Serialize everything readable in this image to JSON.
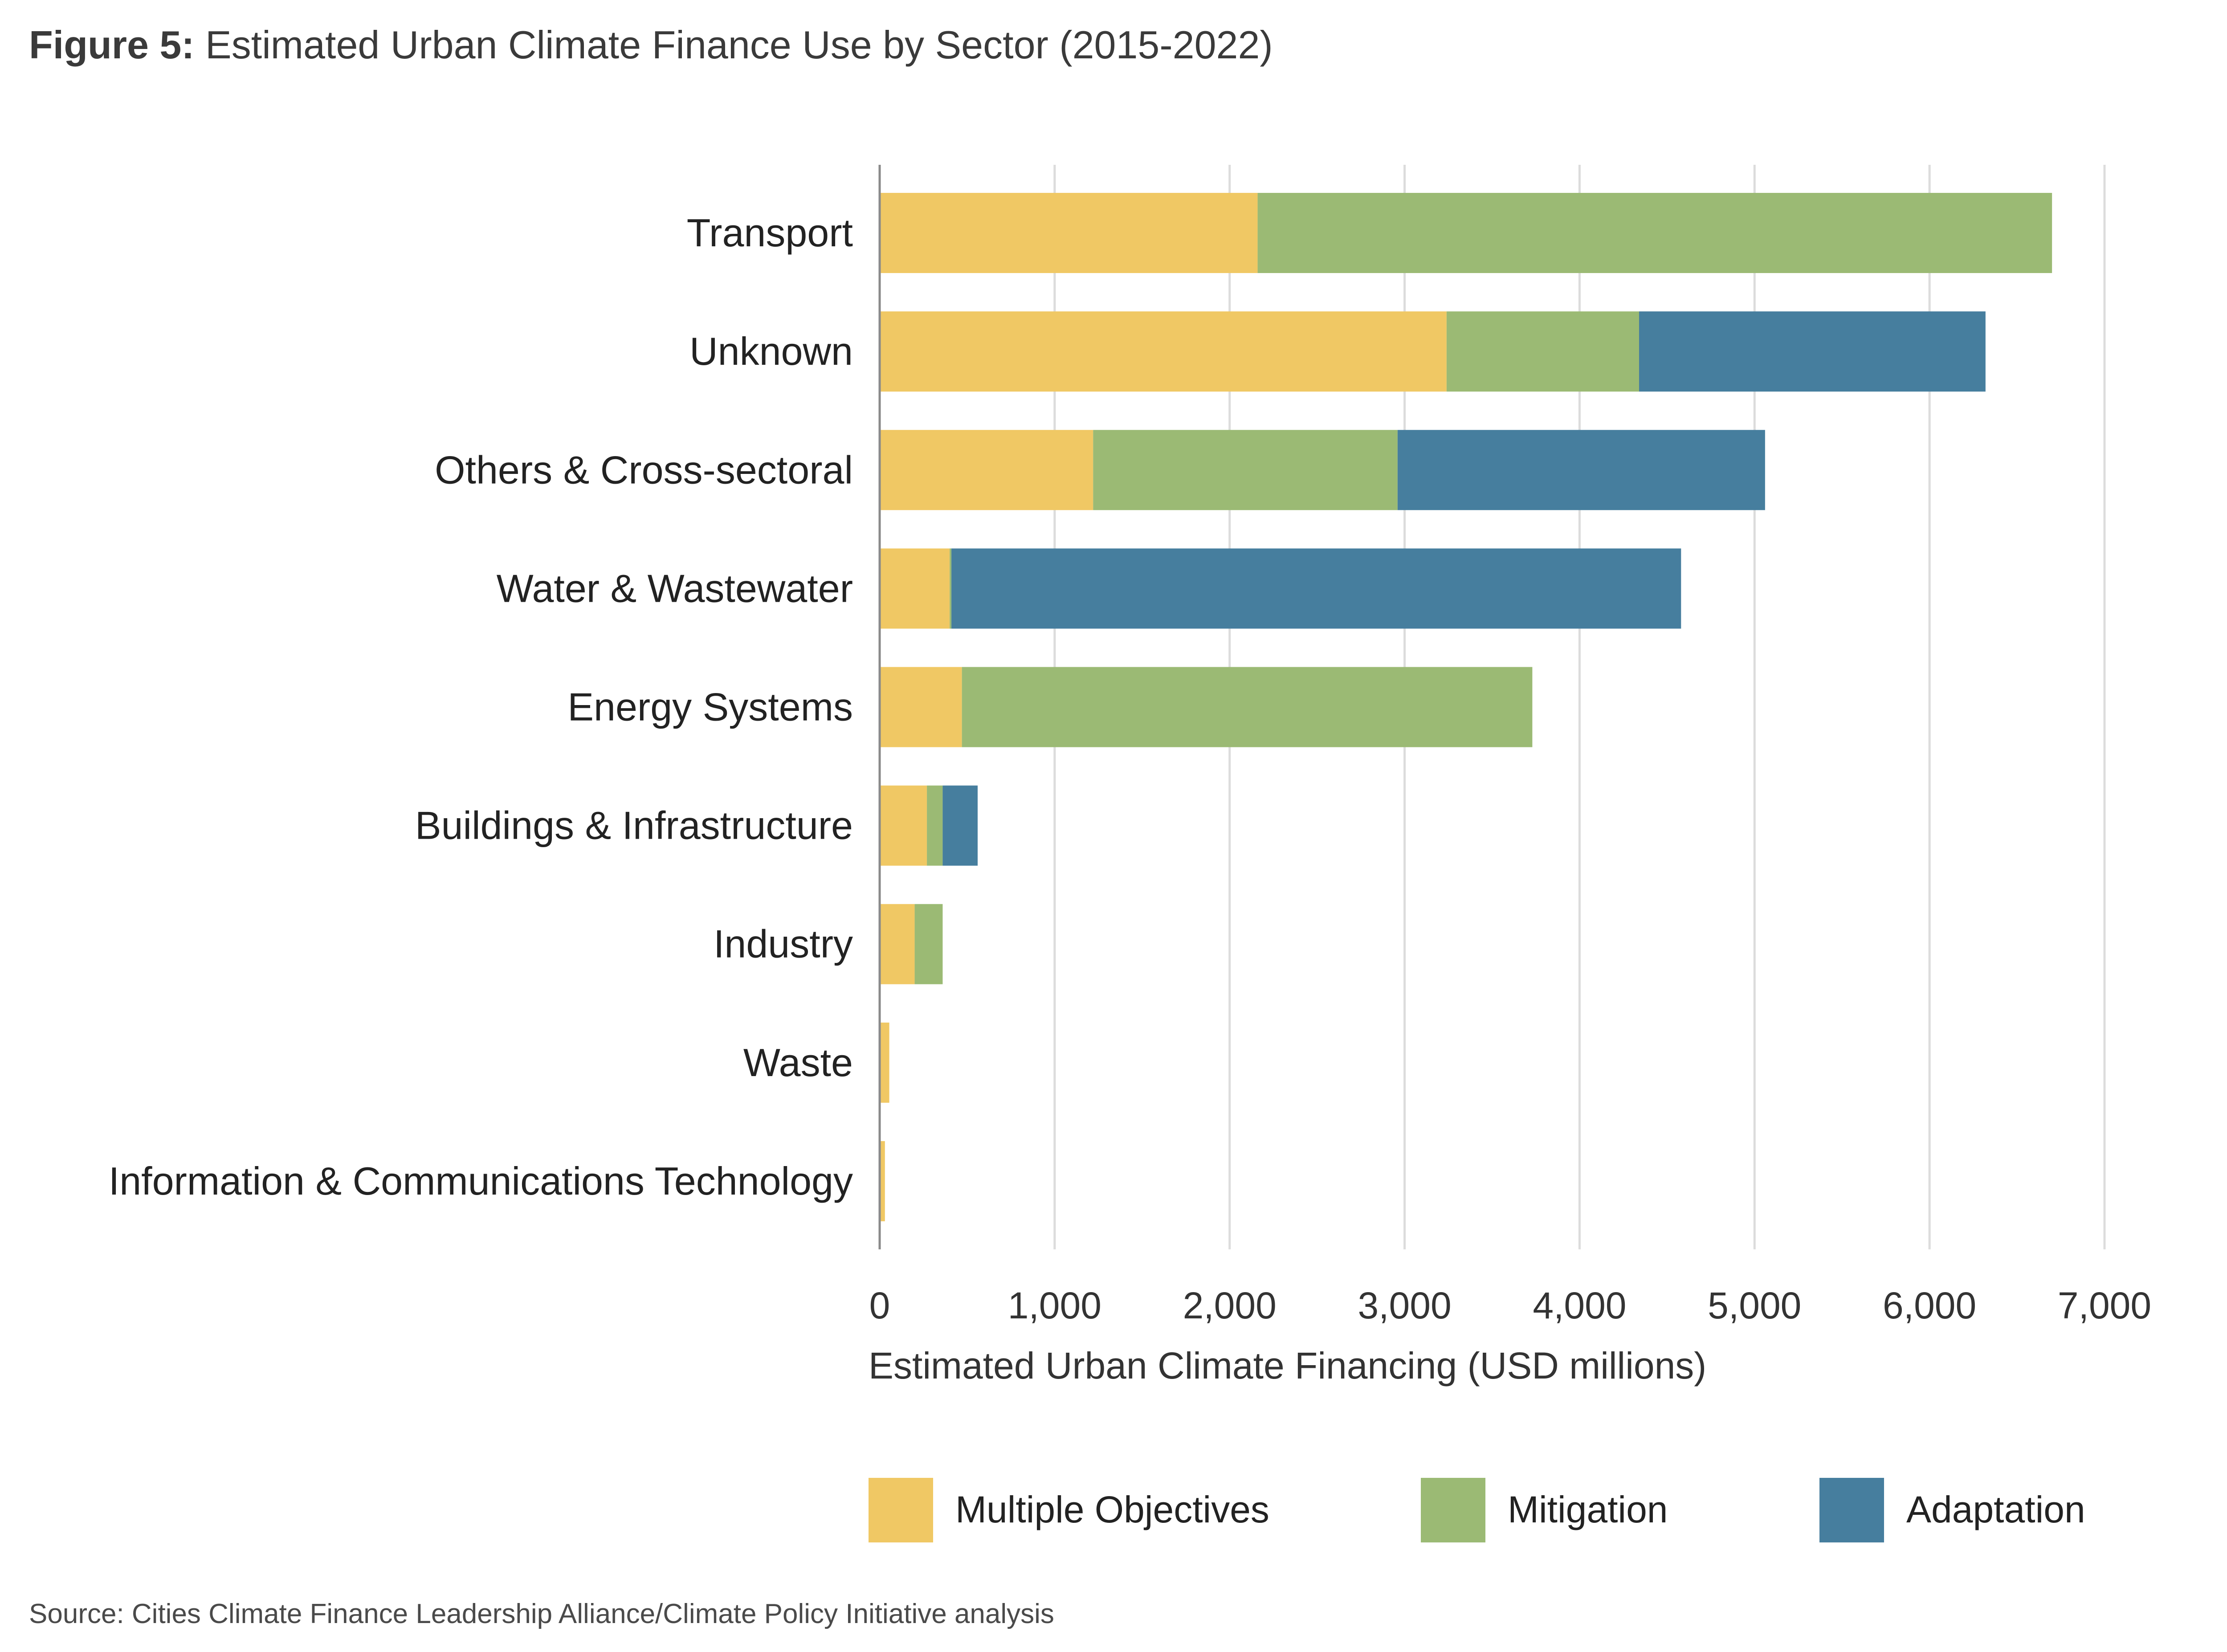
{
  "figure": {
    "label": "Figure 5:",
    "title": "Estimated Urban Climate Finance Use by Sector (2015-2022)",
    "source": "Source: Cities Climate Finance Leadership Alliance/Climate Policy Initiative analysis"
  },
  "chart_data": {
    "type": "bar",
    "orientation": "horizontal",
    "stacked": true,
    "categories": [
      "Transport",
      "Unknown",
      "Others & Cross-sectoral",
      "Water & Wastewater",
      "Energy Systems",
      "Buildings & Infrastructure",
      "Industry",
      "Waste",
      "Information & Communications Technology"
    ],
    "series": [
      {
        "name": "Multiple Objectives",
        "color": "#f0c864",
        "values": [
          2160,
          3240,
          1220,
          400,
          470,
          270,
          200,
          55,
          30
        ]
      },
      {
        "name": "Mitigation",
        "color": "#9bba74",
        "values": [
          4540,
          1100,
          1740,
          10,
          3260,
          90,
          160,
          0,
          0
        ]
      },
      {
        "name": "Adaptation",
        "color": "#467e9e",
        "values": [
          0,
          1980,
          2100,
          4170,
          0,
          200,
          0,
          0,
          0
        ]
      }
    ],
    "xlabel": "Estimated Urban Climate Financing (USD millions)",
    "xlim": [
      0,
      7000
    ],
    "xticks": [
      "0",
      "1,000",
      "2,000",
      "3,000",
      "4,000",
      "5,000",
      "6,000",
      "7,000"
    ],
    "grid": true,
    "legend_position": "bottom"
  }
}
